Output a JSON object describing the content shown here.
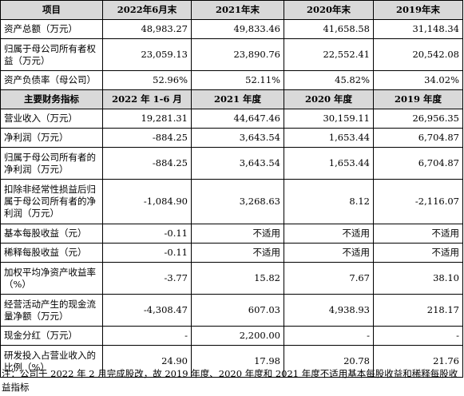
{
  "balance_header": [
    "项目",
    "2022年6月末",
    "2021年末",
    "2020年末",
    "2019年末"
  ],
  "balance_rows": [
    {
      "label": "资产总额（万元）",
      "values": [
        "48,983.27",
        "49,833.46",
        "41,658.58",
        "31,148.34"
      ]
    },
    {
      "label": "归属于母公司所有者权益（万元）",
      "values": [
        "23,059.13",
        "23,890.76",
        "22,552.41",
        "20,542.08"
      ]
    },
    {
      "label": "资产负债率（母公司）",
      "values": [
        "52.96%",
        "52.11%",
        "45.82%",
        "34.02%"
      ]
    }
  ],
  "indicator_header": [
    "主要财务指标",
    "2022 年 1-6 月",
    "2021 年度",
    "2020 年度",
    "2019 年度"
  ],
  "indicator_rows": [
    {
      "label": "营业收入（万元）",
      "values": [
        "19,281.31",
        "44,647.46",
        "30,159.11",
        "26,956.35"
      ]
    },
    {
      "label": "净利润（万元）",
      "values": [
        "-884.25",
        "3,643.54",
        "1,653.44",
        "6,704.87"
      ]
    },
    {
      "label": "归属于母公司所有者的净利润（万元）",
      "values": [
        "-884.25",
        "3,643.54",
        "1,653.44",
        "6,704.87"
      ]
    },
    {
      "label": "扣除非经常性损益后归属于母公司所有者的净利润（万元）",
      "values": [
        "-1,084.90",
        "3,268.63",
        "8.12",
        "-2,116.07"
      ]
    },
    {
      "label": "基本每股收益（元）",
      "values": [
        "-0.11",
        "不适用",
        "不适用",
        "不适用"
      ]
    },
    {
      "label": "稀释每股收益（元）",
      "values": [
        "-0.11",
        "不适用",
        "不适用",
        "不适用"
      ]
    },
    {
      "label": "加权平均净资产收益率（%）",
      "values": [
        "-3.77",
        "15.82",
        "7.67",
        "38.10"
      ]
    },
    {
      "label": "经营活动产生的现金流量净额（万元）",
      "values": [
        "-4,308.47",
        "607.03",
        "4,938.93",
        "218.17"
      ]
    },
    {
      "label": "现金分红（万元）",
      "values": [
        "-",
        "2,200.00",
        "-",
        "-"
      ]
    },
    {
      "label": "研发投入占营业收入的比例（%）",
      "values": [
        "24.90",
        "17.98",
        "20.78",
        "21.76"
      ]
    }
  ],
  "note": "注：公司于 2022 年 2 月完成股改，故 2019 年度、2020 年度和 2021 年度不适用基本每股收益和稀释每股收益指标"
}
